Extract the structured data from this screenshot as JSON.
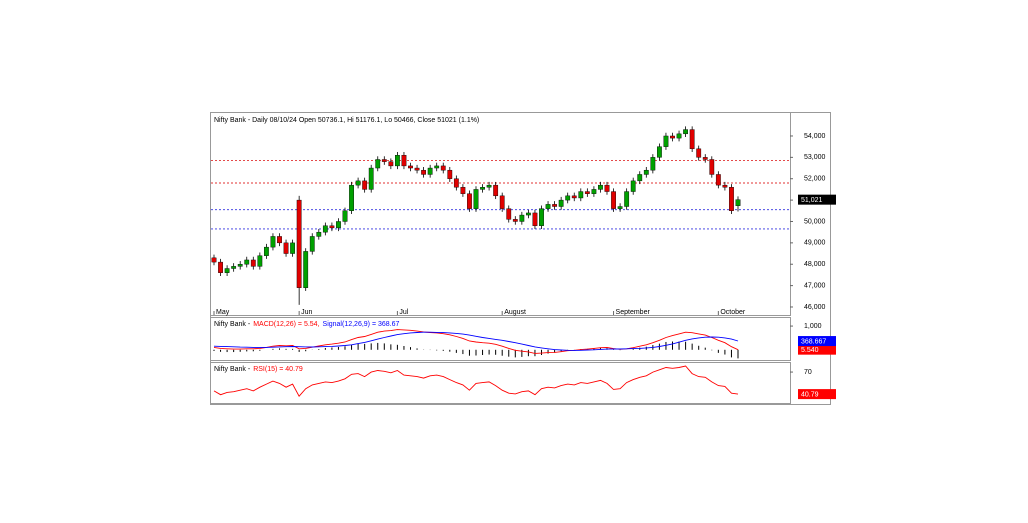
{
  "chart_data": [
    {
      "type": "candlestick",
      "title": "Nifty Bank - Daily 08/10/24 Open 50736.1, Hi 51176.1, Lo 50466, Close 51021 (1.1%)",
      "categories": [
        "May",
        null,
        null,
        null,
        null,
        null,
        null,
        null,
        null,
        null,
        null,
        null,
        null,
        "Jun",
        null,
        null,
        null,
        null,
        null,
        null,
        null,
        null,
        null,
        null,
        null,
        null,
        null,
        null,
        "Jul",
        null,
        null,
        null,
        null,
        null,
        null,
        null,
        null,
        null,
        null,
        null,
        null,
        null,
        null,
        null,
        "August",
        null,
        null,
        null,
        null,
        null,
        null,
        null,
        null,
        null,
        null,
        null,
        null,
        null,
        null,
        null,
        null,
        "September",
        null,
        null,
        null,
        null,
        null,
        null,
        null,
        null,
        null,
        null,
        null,
        null,
        null,
        null,
        null,
        "October",
        null,
        null,
        null
      ],
      "open": [
        48300,
        48100,
        47600,
        47800,
        47900,
        48000,
        48200,
        47900,
        48400,
        48800,
        49300,
        49000,
        48500,
        51000,
        46900,
        48600,
        49300,
        49500,
        49800,
        49700,
        50000,
        50500,
        51700,
        51900,
        51500,
        52500,
        52900,
        52800,
        52600,
        53100,
        52600,
        52500,
        52400,
        52200,
        52500,
        52600,
        52400,
        52000,
        51600,
        51300,
        50600,
        51500,
        51600,
        51700,
        51200,
        50600,
        50100,
        50000,
        50300,
        50400,
        49800,
        50600,
        50800,
        50700,
        51000,
        51200,
        51100,
        51400,
        51300,
        51500,
        51700,
        51400,
        50600,
        50700,
        51400,
        51900,
        52200,
        52400,
        53000,
        53500,
        54000,
        53900,
        54100,
        54300,
        53400,
        53000,
        52900,
        52200,
        51700,
        51600,
        50736.1
      ],
      "high": [
        48450,
        48250,
        47950,
        48050,
        48150,
        48350,
        48350,
        48550,
        48950,
        49450,
        49450,
        49150,
        49150,
        51200,
        48750,
        49450,
        49650,
        49950,
        49950,
        50150,
        50650,
        51850,
        52050,
        52050,
        52650,
        53050,
        53050,
        52950,
        53250,
        53250,
        52750,
        52650,
        52550,
        52650,
        52750,
        52750,
        52550,
        52150,
        51750,
        51450,
        51650,
        51750,
        51850,
        51850,
        51350,
        50750,
        50250,
        50450,
        50550,
        50550,
        50750,
        50950,
        50950,
        51150,
        51350,
        51350,
        51550,
        51550,
        51650,
        51850,
        51850,
        51550,
        50850,
        51550,
        52050,
        52350,
        52550,
        53150,
        53650,
        54150,
        54150,
        54250,
        54450,
        54450,
        53550,
        53150,
        53050,
        52350,
        51850,
        51750,
        51176.1
      ],
      "low": [
        47950,
        47450,
        47450,
        47650,
        47750,
        47850,
        47750,
        47750,
        48250,
        48650,
        48850,
        48350,
        48350,
        46100,
        46750,
        48450,
        49150,
        49350,
        49550,
        49550,
        49850,
        50350,
        51550,
        51350,
        51350,
        52350,
        52650,
        52450,
        52450,
        52450,
        52350,
        52250,
        52050,
        52050,
        52350,
        52250,
        51850,
        51450,
        51150,
        50450,
        50450,
        51350,
        51450,
        51050,
        50450,
        49950,
        49850,
        49850,
        50150,
        49650,
        49650,
        50450,
        50550,
        50550,
        50850,
        50950,
        50950,
        51150,
        51150,
        51350,
        51250,
        50450,
        50450,
        50550,
        51250,
        51750,
        52050,
        52250,
        52850,
        53350,
        53750,
        53750,
        53950,
        53250,
        52850,
        52750,
        52050,
        51550,
        51450,
        50350,
        50466
      ],
      "close": [
        48100,
        47600,
        47800,
        47900,
        48000,
        48200,
        47900,
        48400,
        48800,
        49300,
        49000,
        48500,
        49000,
        46900,
        48600,
        49300,
        49500,
        49800,
        49700,
        50000,
        50500,
        51700,
        51900,
        51500,
        52500,
        52900,
        52800,
        52600,
        53100,
        52600,
        52500,
        52400,
        52200,
        52500,
        52600,
        52400,
        52000,
        51600,
        51300,
        50600,
        51500,
        51600,
        51700,
        51200,
        50600,
        50100,
        50000,
        50300,
        50400,
        49800,
        50600,
        50800,
        50700,
        51000,
        51200,
        51100,
        51400,
        51300,
        51500,
        51700,
        51400,
        50600,
        50700,
        51400,
        51900,
        52200,
        52400,
        53000,
        53500,
        54000,
        53900,
        54100,
        54300,
        53400,
        53000,
        52900,
        52200,
        51700,
        51600,
        50500,
        51021
      ],
      "last_label": "51,021",
      "up_color": "#00a000",
      "down_color": "#e00000",
      "levels": [
        {
          "value": 52850,
          "color": "#e03030"
        },
        {
          "value": 51800,
          "color": "#e03030"
        },
        {
          "value": 50550,
          "color": "#3030e0"
        },
        {
          "value": 49650,
          "color": "#3030e0"
        }
      ],
      "ylim": [
        45625,
        55075
      ],
      "yticks": [
        {
          "value": 46000,
          "label": "46,000"
        },
        {
          "value": 47000,
          "label": "47,000"
        },
        {
          "value": 48000,
          "label": "48,000"
        },
        {
          "value": 49000,
          "label": "49,000"
        },
        {
          "value": 50000,
          "label": "50,000"
        },
        {
          "value": 51000,
          "label": "51,000"
        },
        {
          "value": 52000,
          "label": "52,000"
        },
        {
          "value": 53000,
          "label": "53,000"
        },
        {
          "value": 54000,
          "label": "54,000"
        }
      ]
    },
    {
      "type": "macd",
      "title": "Nifty Bank -",
      "series": [
        {
          "name": "MACD(12,26) = 5.54,",
          "color": "#ff0000",
          "last_label": "5.540",
          "values": [
            100,
            60,
            40,
            30,
            30,
            40,
            40,
            60,
            100,
            150,
            180,
            170,
            180,
            40,
            60,
            110,
            160,
            210,
            240,
            280,
            330,
            430,
            520,
            560,
            650,
            740,
            790,
            810,
            850,
            840,
            820,
            790,
            750,
            730,
            710,
            680,
            630,
            560,
            480,
            370,
            330,
            300,
            280,
            230,
            150,
            60,
            -20,
            -60,
            -90,
            -150,
            -140,
            -120,
            -110,
            -80,
            -40,
            -20,
            10,
            30,
            60,
            90,
            100,
            50,
            20,
            40,
            90,
            150,
            210,
            300,
            400,
            520,
            600,
            670,
            740,
            720,
            670,
            620,
            520,
            400,
            300,
            130,
            5.54
          ]
        },
        {
          "name": "Signal(12,26,9) = 368.67",
          "color": "#0000ff",
          "last_label": "368.667",
          "values": [
            150,
            145,
            135,
            125,
            115,
            108,
            103,
            100,
            100,
            110,
            120,
            130,
            140,
            130,
            120,
            118,
            126,
            133,
            145,
            160,
            180,
            210,
            260,
            310,
            380,
            450,
            520,
            580,
            640,
            680,
            710,
            730,
            740,
            740,
            735,
            725,
            710,
            690,
            660,
            620,
            570,
            520,
            480,
            440,
            400,
            350,
            300,
            240,
            180,
            120,
            80,
            40,
            10,
            -10,
            -20,
            -25,
            -20,
            -10,
            0,
            15,
            30,
            35,
            35,
            40,
            50,
            60,
            80,
            100,
            140,
            190,
            250,
            320,
            400,
            460,
            500,
            530,
            540,
            530,
            500,
            450,
            368.67
          ]
        }
      ],
      "histogram": [
        -50,
        -85,
        -95,
        -95,
        -85,
        -68,
        -63,
        -40,
        0,
        40,
        60,
        40,
        40,
        -90,
        -60,
        -8,
        34,
        77,
        95,
        120,
        150,
        220,
        260,
        250,
        270,
        290,
        270,
        230,
        210,
        160,
        110,
        60,
        10,
        -10,
        -25,
        -45,
        -80,
        -130,
        -180,
        -250,
        -240,
        -220,
        -200,
        -210,
        -250,
        -290,
        -320,
        -300,
        -270,
        -270,
        -220,
        -160,
        -120,
        -70,
        -20,
        5,
        30,
        40,
        60,
        75,
        70,
        15,
        -15,
        0,
        40,
        90,
        130,
        200,
        260,
        330,
        350,
        350,
        340,
        260,
        170,
        90,
        -20,
        -130,
        -200,
        -320,
        -363.13
      ],
      "histogram_color": "#000000",
      "ylim": [
        -430,
        1340
      ],
      "yticks": [
        {
          "value": 1000,
          "label": "1,000"
        }
      ]
    },
    {
      "type": "rsi",
      "title": "Nifty Bank -",
      "series": [
        {
          "name": "RSI(15) = 40.79",
          "color": "#ff0000",
          "last_label": "40.79",
          "values": [
            45,
            40,
            43,
            44,
            46,
            48,
            45,
            50,
            54,
            58,
            55,
            50,
            54,
            38,
            48,
            53,
            55,
            57,
            56,
            58,
            61,
            67,
            68,
            64,
            70,
            72,
            71,
            69,
            72,
            66,
            65,
            64,
            62,
            65,
            66,
            64,
            60,
            56,
            53,
            46,
            55,
            56,
            57,
            52,
            46,
            42,
            41,
            44,
            45,
            40,
            48,
            50,
            49,
            52,
            54,
            53,
            56,
            55,
            57,
            59,
            55,
            47,
            48,
            56,
            60,
            63,
            65,
            70,
            73,
            76,
            75,
            76,
            78,
            68,
            64,
            63,
            57,
            52,
            51,
            42,
            40.79
          ]
        }
      ],
      "ylim": [
        29,
        82
      ],
      "yticks": [
        70
      ]
    }
  ]
}
